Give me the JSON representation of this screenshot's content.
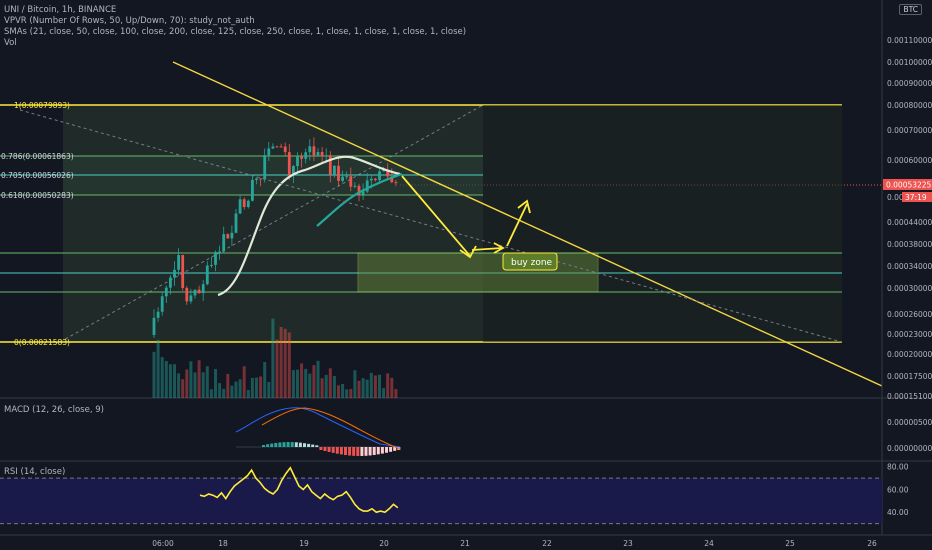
{
  "header": {
    "symbol_line": "UNI / Bitcoin, 1h, BINANCE",
    "vpvr_line": "VPVR (Number Of Rows, 50, Up/Down, 70): study_not_auth",
    "sma_line": "SMAs (21, close, 50, close, 100, close, 200, close, 125, close, 250, close, 1, close, 1, close, 1, close, 1, close)",
    "vol_line": "Vol",
    "currency_badge": "BTC"
  },
  "annotation": {
    "buy_zone_label": "buy zone"
  },
  "colors": {
    "background": "#131722",
    "fib_line": "#ffeb3b",
    "trend_line": "#f5d742",
    "up_candle": "#26a69a",
    "down_candle": "#ef5350",
    "price_badge": "#ef5350",
    "rsi_band": "#1a1a4a"
  },
  "chart_data": [
    {
      "type": "candlestick",
      "pane": "price",
      "x_ticks": [
        "06:00",
        "18",
        "19",
        "20",
        "21",
        "22",
        "23",
        "24",
        "25",
        "26"
      ],
      "y_ticks": [
        "0.00110000",
        "0.00100000",
        "0.00090000",
        "0.00080000",
        "0.00070000",
        "0.00060000",
        "0.00044000",
        "0.00038000",
        "0.00034000",
        "0.00030000",
        "0.00026000",
        "0.00023000",
        "0.00020000",
        "0.00017500",
        "0.00015100"
      ],
      "last_price": "0.00053225",
      "countdown": "37:19",
      "partial_y_label": "0.0004",
      "ylim": [
        0.00015,
        0.0012
      ],
      "fib_levels": [
        {
          "label": "1(0.00079893)",
          "ratio": 1,
          "price": 0.00079893
        },
        {
          "label": "0.786(0.00061863)",
          "ratio": 0.786,
          "price": 0.00061863
        },
        {
          "label": "0.705(0.00056026)",
          "ratio": 0.705,
          "price": 0.00056026
        },
        {
          "label": "0.618(0.00050283)",
          "ratio": 0.618,
          "price": 0.00050283
        },
        {
          "label": "0(0.00021583)",
          "ratio": 0,
          "price": 0.00021583
        }
      ],
      "buy_zone": {
        "top": 0.00036,
        "bottom": 0.00029
      },
      "support_levels": [
        0.00036,
        0.00032,
        0.00029
      ]
    },
    {
      "type": "line",
      "pane": "MACD",
      "title": "MACD (12, 26, close, 9)",
      "y_ticks": [
        "0.00000500",
        "0.00000000"
      ]
    },
    {
      "type": "line",
      "pane": "RSI",
      "title": "RSI (14, close)",
      "y_ticks": [
        "80.00",
        "60.00",
        "40.00"
      ],
      "ylim": [
        20,
        85
      ],
      "band": [
        30,
        70
      ],
      "values": [
        55,
        54,
        56,
        55,
        53,
        57,
        52,
        58,
        63,
        66,
        69,
        72,
        77,
        70,
        66,
        61,
        58,
        56,
        60,
        68,
        74,
        79,
        71,
        63,
        60,
        64,
        58,
        55,
        52,
        56,
        53,
        51,
        54,
        55,
        58,
        53,
        47,
        43,
        41,
        41,
        43,
        40,
        41,
        40,
        43,
        47,
        44
      ]
    }
  ]
}
